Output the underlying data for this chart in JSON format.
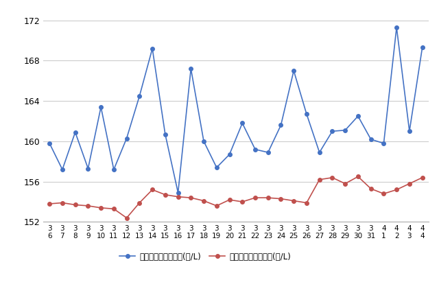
{
  "x_labels": [
    "3\n6",
    "3\n7",
    "3\n8",
    "3\n9",
    "3\n10",
    "3\n11",
    "3\n12",
    "3\n13",
    "3\n14",
    "3\n15",
    "3\n16",
    "3\n17",
    "3\n18",
    "3\n19",
    "3\n20",
    "3\n21",
    "3\n22",
    "3\n23",
    "3\n24",
    "3\n25",
    "3\n26",
    "3\n27",
    "3\n28",
    "3\n29",
    "3\n30",
    "3\n31",
    "4\n1",
    "4\n2",
    "4\n3",
    "4\n4"
  ],
  "blue_values": [
    159.8,
    157.2,
    160.9,
    157.3,
    163.4,
    157.2,
    160.3,
    164.5,
    169.2,
    160.7,
    154.9,
    167.2,
    160.0,
    157.4,
    158.7,
    161.8,
    159.2,
    158.9,
    161.6,
    167.0,
    162.7,
    158.9,
    161.0,
    161.1,
    162.5,
    160.2,
    159.8,
    171.3,
    161.0,
    169.3
  ],
  "red_values": [
    153.8,
    153.9,
    153.7,
    153.6,
    153.4,
    153.3,
    152.4,
    153.9,
    155.2,
    154.7,
    154.5,
    154.4,
    154.1,
    153.6,
    154.2,
    154.0,
    154.4,
    154.4,
    154.3,
    154.1,
    153.9,
    156.2,
    156.4,
    155.8,
    156.5,
    155.3,
    154.8,
    155.2,
    155.8,
    156.4
  ],
  "blue_color": "#4472c4",
  "red_color": "#c0504d",
  "ylim": [
    152,
    173
  ],
  "yticks": [
    152,
    156,
    160,
    164,
    168,
    172
  ],
  "legend_blue": "レギュラー看板価格(円/L)",
  "legend_red": "レギュラー実売価格(円/L)",
  "bg_color": "#ffffff",
  "grid_color": "#cccccc"
}
